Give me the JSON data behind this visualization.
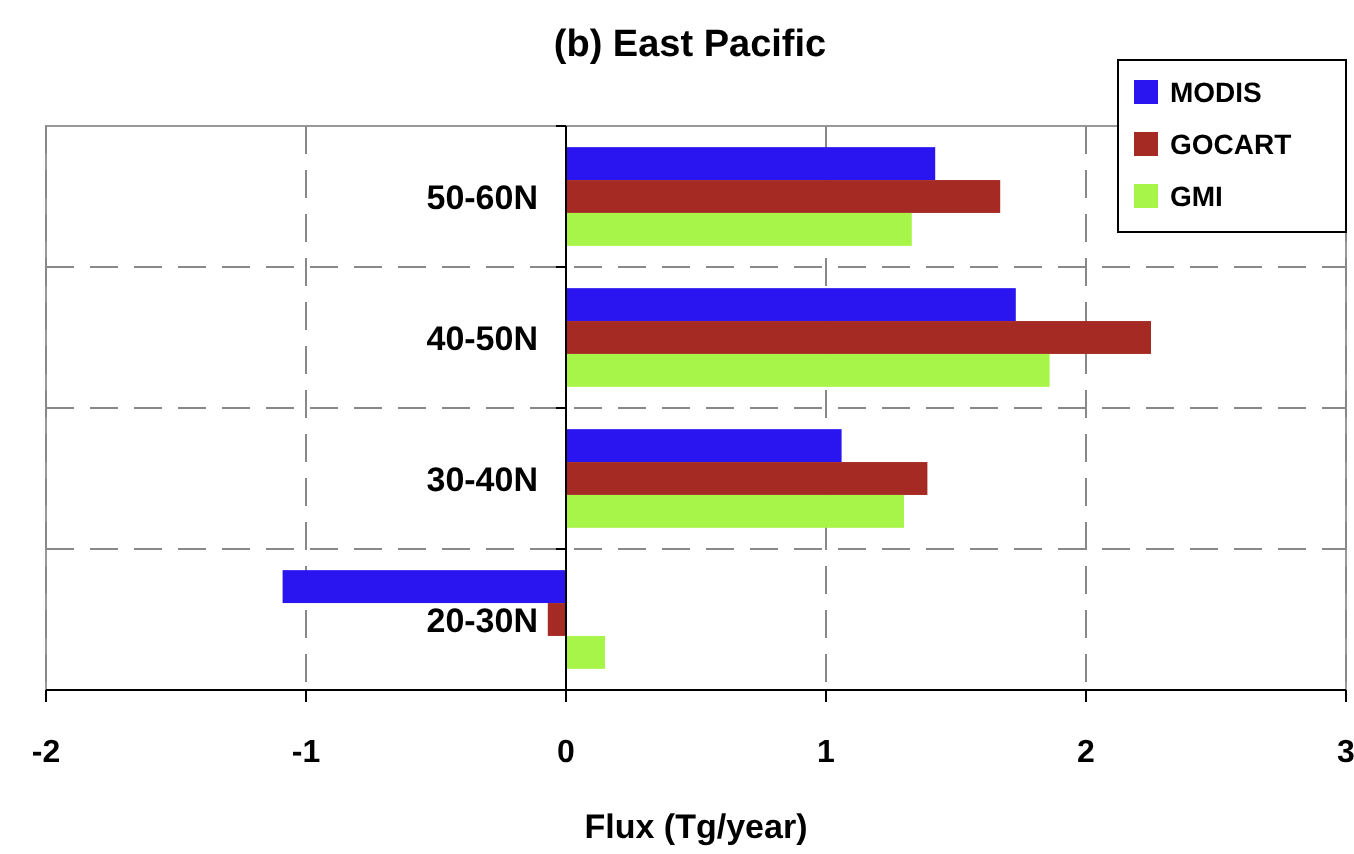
{
  "chart_data": {
    "type": "bar",
    "orientation": "horizontal",
    "title": "(b) East Pacific",
    "xlabel": "Flux (Tg/year)",
    "categories": [
      "50-60N",
      "40-50N",
      "30-40N",
      "20-30N"
    ],
    "series": [
      {
        "name": "MODIS",
        "color": "#2a14f0",
        "values": [
          1.42,
          1.73,
          1.06,
          -1.09
        ]
      },
      {
        "name": "GOCART",
        "color": "#a52a24",
        "values": [
          1.67,
          2.25,
          1.39,
          -0.07
        ]
      },
      {
        "name": "GMI",
        "color": "#a8f54a",
        "values": [
          1.33,
          1.86,
          1.3,
          0.15
        ]
      }
    ],
    "xlim": [
      -2,
      3
    ],
    "xticks": [
      -2,
      -1,
      0,
      1,
      2,
      3
    ],
    "grid": true,
    "legend": "top right"
  }
}
